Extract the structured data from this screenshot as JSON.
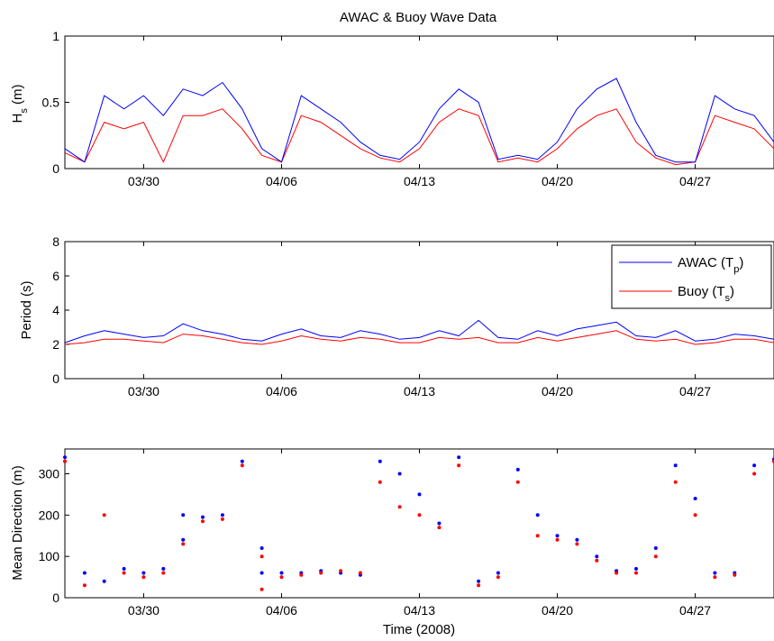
{
  "figure": {
    "title": "AWAC & Buoy Wave Data",
    "xlabel": "Time (2008)",
    "x_ticks": [
      "03/30",
      "04/06",
      "04/13",
      "04/20",
      "04/27"
    ]
  },
  "chart_data": [
    {
      "type": "line",
      "ylabel": "H_s (m)",
      "ylabel_main": "H",
      "ylabel_sub": "s",
      "ylabel_rest": " (m)",
      "ylim": [
        0,
        1
      ],
      "yticks": [
        "0",
        "0.5",
        "1"
      ],
      "xlim": [
        "2008-03-26",
        "2008-05-01"
      ],
      "x": [
        "2008-03-26",
        "2008-03-27",
        "2008-03-28",
        "2008-03-29",
        "2008-03-30",
        "2008-03-31",
        "2008-04-01",
        "2008-04-02",
        "2008-04-03",
        "2008-04-04",
        "2008-04-05",
        "2008-04-06",
        "2008-04-07",
        "2008-04-08",
        "2008-04-09",
        "2008-04-10",
        "2008-04-11",
        "2008-04-12",
        "2008-04-13",
        "2008-04-14",
        "2008-04-15",
        "2008-04-16",
        "2008-04-17",
        "2008-04-18",
        "2008-04-19",
        "2008-04-20",
        "2008-04-21",
        "2008-04-22",
        "2008-04-23",
        "2008-04-24",
        "2008-04-25",
        "2008-04-26",
        "2008-04-27",
        "2008-04-28",
        "2008-04-29",
        "2008-04-30",
        "2008-05-01"
      ],
      "series": [
        {
          "color": "#0000ff",
          "values": [
            0.15,
            0.05,
            0.55,
            0.45,
            0.55,
            0.4,
            0.6,
            0.55,
            0.65,
            0.45,
            0.15,
            0.05,
            0.55,
            0.45,
            0.35,
            0.2,
            0.1,
            0.07,
            0.2,
            0.45,
            0.6,
            0.5,
            0.07,
            0.1,
            0.07,
            0.2,
            0.45,
            0.6,
            0.68,
            0.35,
            0.1,
            0.05,
            0.05,
            0.55,
            0.45,
            0.4,
            0.2
          ]
        },
        {
          "color": "#ff0000",
          "values": [
            0.12,
            0.05,
            0.35,
            0.3,
            0.35,
            0.05,
            0.4,
            0.4,
            0.45,
            0.3,
            0.1,
            0.05,
            0.4,
            0.35,
            0.25,
            0.15,
            0.08,
            0.05,
            0.15,
            0.35,
            0.45,
            0.4,
            0.05,
            0.08,
            0.05,
            0.15,
            0.3,
            0.4,
            0.45,
            0.2,
            0.08,
            0.03,
            0.05,
            0.4,
            0.35,
            0.3,
            0.15
          ]
        }
      ]
    },
    {
      "type": "line",
      "ylabel": "Period (s)",
      "ylim": [
        0,
        8
      ],
      "yticks": [
        "0",
        "2",
        "4",
        "6",
        "8"
      ],
      "xlim": [
        "2008-03-26",
        "2008-05-01"
      ],
      "x": [
        "2008-03-26",
        "2008-03-27",
        "2008-03-28",
        "2008-03-29",
        "2008-03-30",
        "2008-03-31",
        "2008-04-01",
        "2008-04-02",
        "2008-04-03",
        "2008-04-04",
        "2008-04-05",
        "2008-04-06",
        "2008-04-07",
        "2008-04-08",
        "2008-04-09",
        "2008-04-10",
        "2008-04-11",
        "2008-04-12",
        "2008-04-13",
        "2008-04-14",
        "2008-04-15",
        "2008-04-16",
        "2008-04-17",
        "2008-04-18",
        "2008-04-19",
        "2008-04-20",
        "2008-04-21",
        "2008-04-22",
        "2008-04-23",
        "2008-04-24",
        "2008-04-25",
        "2008-04-26",
        "2008-04-27",
        "2008-04-28",
        "2008-04-29",
        "2008-04-30",
        "2008-05-01"
      ],
      "series": [
        {
          "name": "AWAC (T_p)",
          "legend_main": "AWAC (T",
          "legend_sub": "p",
          "legend_end": ")",
          "color": "#0000ff",
          "values": [
            2.1,
            2.5,
            2.8,
            2.6,
            2.4,
            2.5,
            3.2,
            2.8,
            2.6,
            2.3,
            2.2,
            2.6,
            2.9,
            2.5,
            2.4,
            2.8,
            2.6,
            2.3,
            2.4,
            2.8,
            2.5,
            3.4,
            2.4,
            2.3,
            2.8,
            2.5,
            2.9,
            3.1,
            3.3,
            2.5,
            2.4,
            2.8,
            2.2,
            2.3,
            2.6,
            2.5,
            2.3
          ]
        },
        {
          "name": "Buoy (T_s)",
          "legend_main": "Buoy (T",
          "legend_sub": "s",
          "legend_end": ")",
          "color": "#ff0000",
          "values": [
            2.0,
            2.1,
            2.3,
            2.3,
            2.2,
            2.1,
            2.6,
            2.5,
            2.3,
            2.1,
            2.0,
            2.2,
            2.5,
            2.3,
            2.2,
            2.4,
            2.3,
            2.1,
            2.1,
            2.4,
            2.3,
            2.4,
            2.1,
            2.1,
            2.4,
            2.2,
            2.4,
            2.6,
            2.8,
            2.3,
            2.2,
            2.3,
            2.0,
            2.1,
            2.3,
            2.3,
            2.1
          ]
        }
      ]
    },
    {
      "type": "scatter",
      "ylabel": "Mean Direction (m)",
      "ylim": [
        0,
        360
      ],
      "yticks": [
        "0",
        "100",
        "200",
        "300"
      ],
      "xlim": [
        "2008-03-26",
        "2008-05-01"
      ],
      "series": [
        {
          "color": "#0000ff",
          "points": [
            [
              "2008-03-26",
              340
            ],
            [
              "2008-03-27",
              60
            ],
            [
              "2008-03-28",
              40
            ],
            [
              "2008-03-29",
              70
            ],
            [
              "2008-03-30",
              60
            ],
            [
              "2008-03-31",
              70
            ],
            [
              "2008-04-01",
              140
            ],
            [
              "2008-04-01",
              200
            ],
            [
              "2008-04-02",
              195
            ],
            [
              "2008-04-03",
              200
            ],
            [
              "2008-04-04",
              330
            ],
            [
              "2008-04-05",
              60
            ],
            [
              "2008-04-05",
              120
            ],
            [
              "2008-04-06",
              60
            ],
            [
              "2008-04-07",
              60
            ],
            [
              "2008-04-08",
              65
            ],
            [
              "2008-04-09",
              60
            ],
            [
              "2008-04-10",
              55
            ],
            [
              "2008-04-11",
              330
            ],
            [
              "2008-04-12",
              300
            ],
            [
              "2008-04-13",
              250
            ],
            [
              "2008-04-14",
              180
            ],
            [
              "2008-04-15",
              340
            ],
            [
              "2008-04-16",
              40
            ],
            [
              "2008-04-17",
              60
            ],
            [
              "2008-04-18",
              310
            ],
            [
              "2008-04-19",
              200
            ],
            [
              "2008-04-20",
              150
            ],
            [
              "2008-04-21",
              140
            ],
            [
              "2008-04-22",
              100
            ],
            [
              "2008-04-23",
              65
            ],
            [
              "2008-04-24",
              70
            ],
            [
              "2008-04-25",
              120
            ],
            [
              "2008-04-26",
              320
            ],
            [
              "2008-04-27",
              240
            ],
            [
              "2008-04-28",
              60
            ],
            [
              "2008-04-29",
              60
            ],
            [
              "2008-04-30",
              320
            ],
            [
              "2008-05-01",
              335
            ]
          ]
        },
        {
          "color": "#ff0000",
          "points": [
            [
              "2008-03-26",
              330
            ],
            [
              "2008-03-27",
              30
            ],
            [
              "2008-03-28",
              200
            ],
            [
              "2008-03-29",
              60
            ],
            [
              "2008-03-30",
              50
            ],
            [
              "2008-03-31",
              60
            ],
            [
              "2008-04-01",
              130
            ],
            [
              "2008-04-02",
              185
            ],
            [
              "2008-04-03",
              190
            ],
            [
              "2008-04-04",
              320
            ],
            [
              "2008-04-05",
              20
            ],
            [
              "2008-04-05",
              100
            ],
            [
              "2008-04-06",
              50
            ],
            [
              "2008-04-07",
              55
            ],
            [
              "2008-04-08",
              60
            ],
            [
              "2008-04-09",
              65
            ],
            [
              "2008-04-10",
              60
            ],
            [
              "2008-04-11",
              280
            ],
            [
              "2008-04-12",
              220
            ],
            [
              "2008-04-13",
              200
            ],
            [
              "2008-04-14",
              170
            ],
            [
              "2008-04-15",
              320
            ],
            [
              "2008-04-16",
              30
            ],
            [
              "2008-04-17",
              50
            ],
            [
              "2008-04-18",
              280
            ],
            [
              "2008-04-19",
              150
            ],
            [
              "2008-04-20",
              140
            ],
            [
              "2008-04-21",
              130
            ],
            [
              "2008-04-22",
              90
            ],
            [
              "2008-04-23",
              60
            ],
            [
              "2008-04-24",
              60
            ],
            [
              "2008-04-25",
              100
            ],
            [
              "2008-04-26",
              280
            ],
            [
              "2008-04-27",
              200
            ],
            [
              "2008-04-28",
              50
            ],
            [
              "2008-04-29",
              55
            ],
            [
              "2008-04-30",
              300
            ],
            [
              "2008-05-01",
              330
            ]
          ]
        }
      ]
    }
  ]
}
